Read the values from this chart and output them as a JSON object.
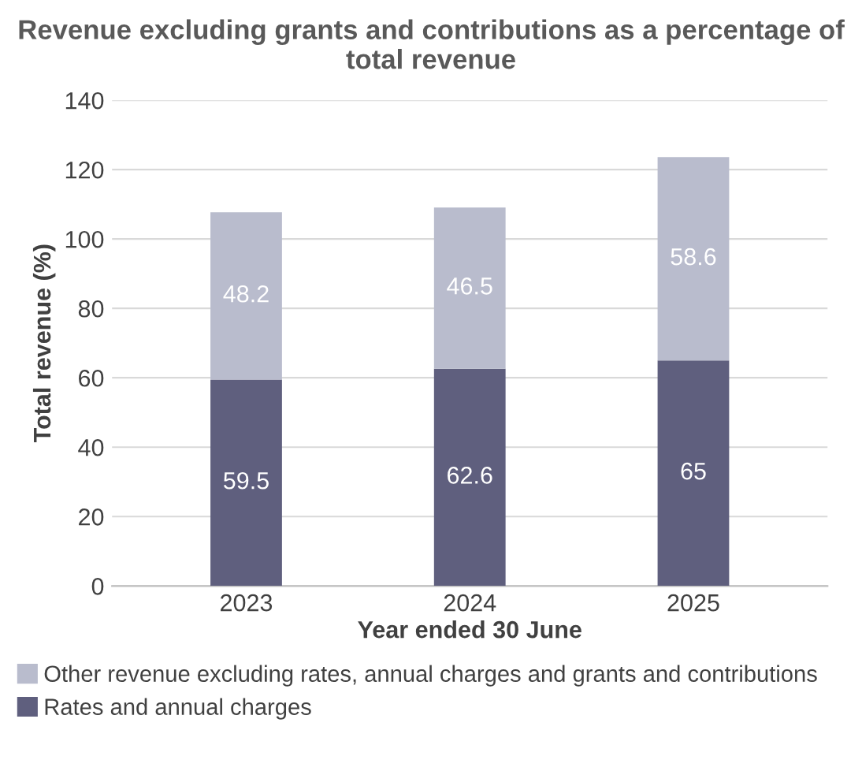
{
  "chart_data": {
    "type": "bar",
    "title": "Revenue excluding grants and contributions as a percentage of total revenue",
    "xlabel": "Year ended 30 June",
    "ylabel": "Total revenue (%)",
    "categories": [
      "2023",
      "2024",
      "2025"
    ],
    "stacked": true,
    "series": [
      {
        "name": "Rates and annual charges",
        "color": "#5f5f7e",
        "values": [
          59.5,
          62.6,
          65
        ]
      },
      {
        "name": "Other revenue excluding rates, annual charges and grants and contributions",
        "color": "#b9bccd",
        "values": [
          48.2,
          46.5,
          58.6
        ]
      }
    ],
    "ylim": [
      0,
      140
    ],
    "yticks": [
      0,
      20,
      40,
      60,
      80,
      100,
      120,
      140
    ],
    "grid": "y",
    "legend": "bottom",
    "data_labels": true
  }
}
